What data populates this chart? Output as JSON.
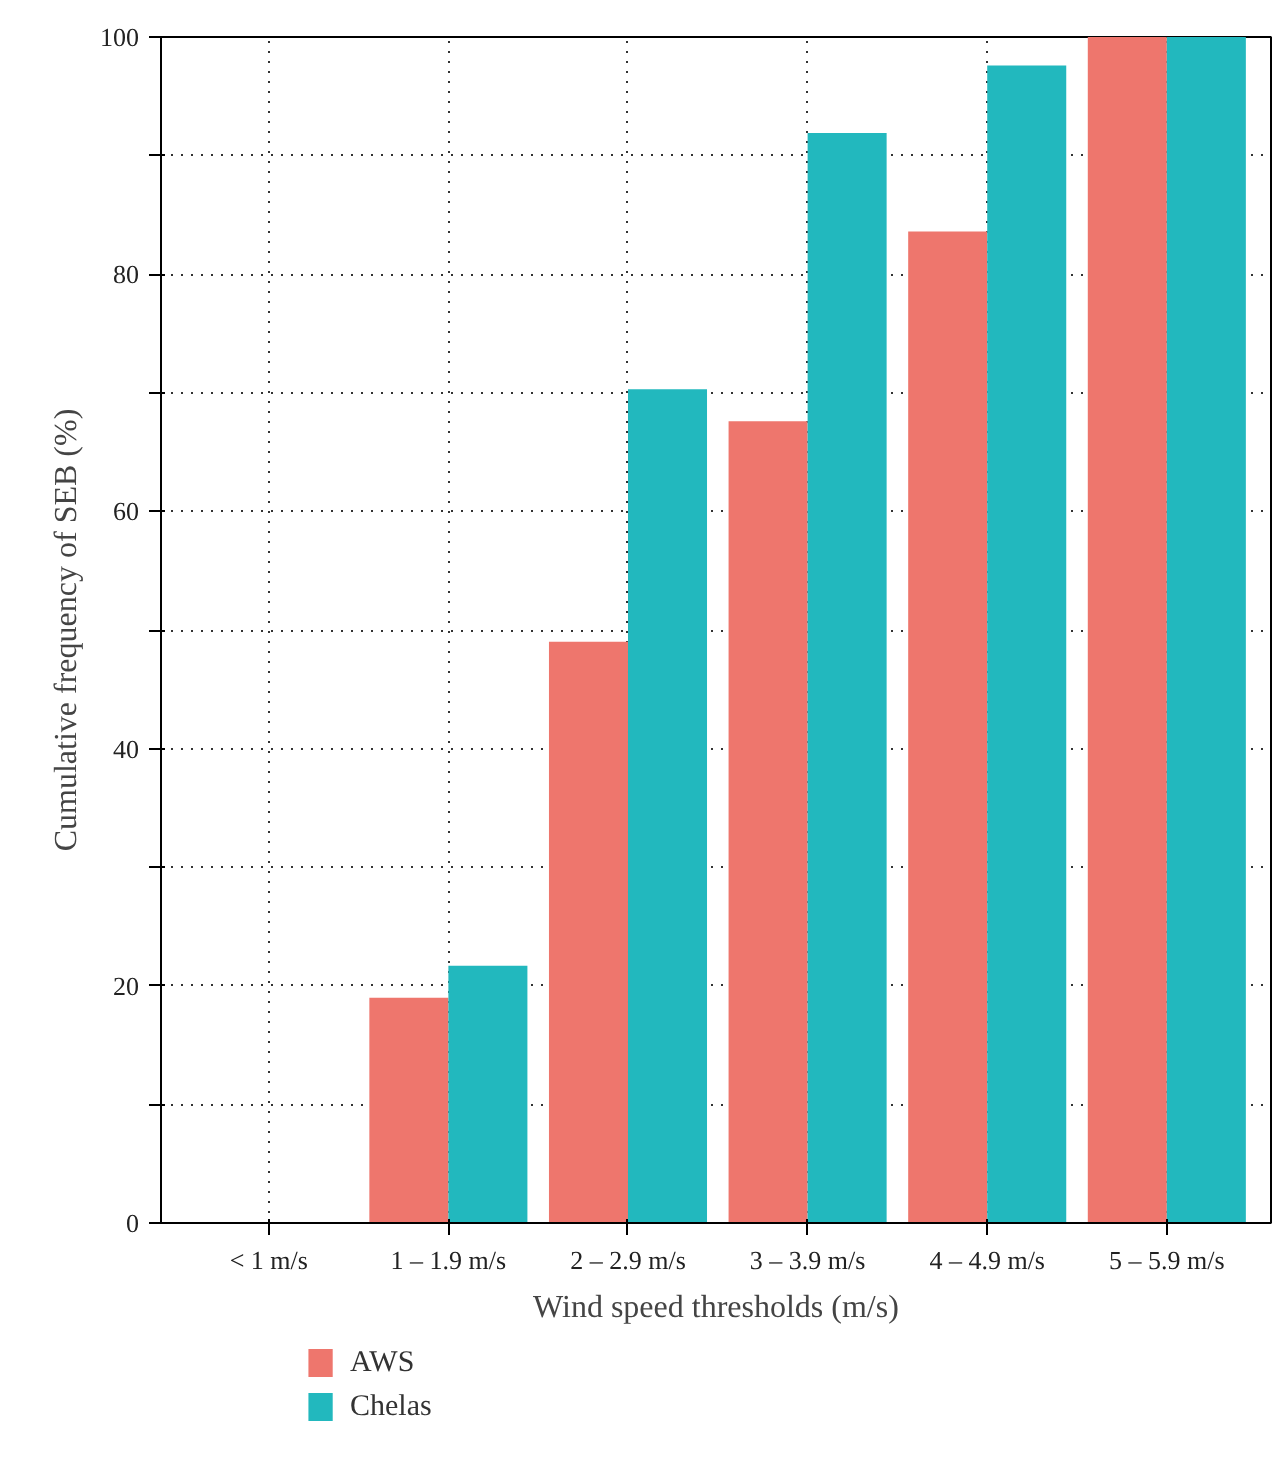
{
  "chart_data": {
    "type": "bar",
    "xlabel": "Wind speed thresholds (m/s)",
    "ylabel": "Cumulative frequency of SEB (%)",
    "categories": [
      "< 1 m/s",
      "1 – 1.9 m/s",
      "2 – 2.9 m/s",
      "3 – 3.9 m/s",
      "4 – 4.9 m/s",
      "5 – 5.9 m/s"
    ],
    "series": [
      {
        "name": "AWS",
        "color": "#ee766d",
        "values": [
          0,
          19.0,
          49.0,
          67.6,
          83.6,
          100
        ]
      },
      {
        "name": "Chelas",
        "color": "#22b8be",
        "values": [
          0,
          21.7,
          70.3,
          91.9,
          97.6,
          100
        ]
      }
    ],
    "ylim": [
      0,
      100
    ],
    "yticks": [
      0,
      {
        "value": 10,
        "label": null
      },
      20,
      {
        "value": 30,
        "label": null
      },
      40,
      {
        "value": 50,
        "label": null
      },
      60,
      {
        "value": 70,
        "label": null
      },
      80,
      {
        "value": 90,
        "label": null
      },
      100
    ],
    "grid": true,
    "legend": "bottom left"
  }
}
